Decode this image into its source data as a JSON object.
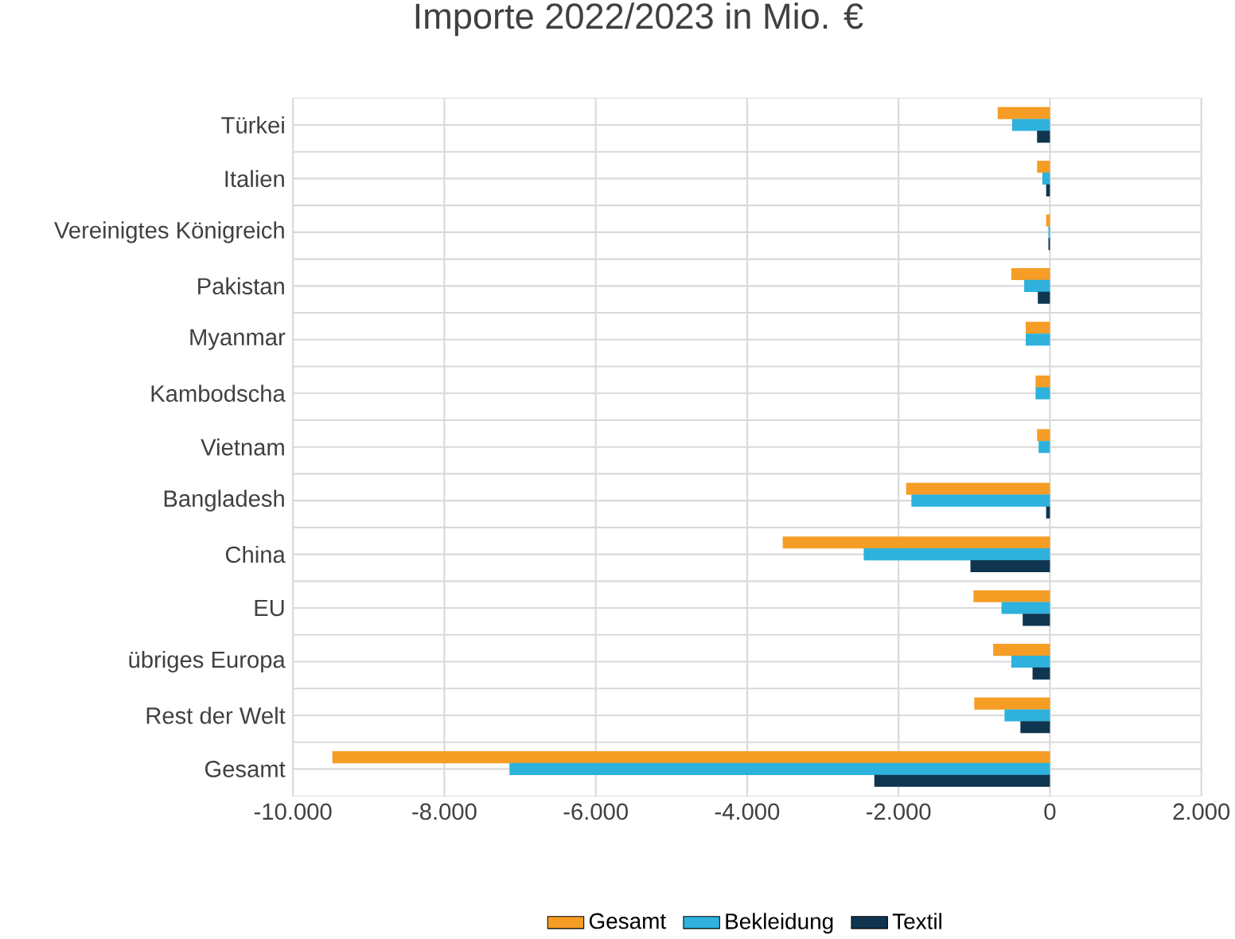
{
  "chart_data": {
    "type": "bar",
    "orientation": "horizontal",
    "title": "Importe 2022/2023 in Mio. €",
    "categories": [
      "Türkei",
      "Italien",
      "Vereinigtes Königreich",
      "Pakistan",
      "Myanmar",
      "Kambodscha",
      "Vietnam",
      "Bangladesh",
      "China",
      "EU",
      "übriges Europa",
      "Rest der Welt",
      "Gesamt"
    ],
    "series": [
      {
        "name": "Gesamt",
        "color": "#f59d25",
        "values": [
          -690,
          -170,
          -50,
          -510,
          -320,
          -190,
          -170,
          -1900,
          -3530,
          -1010,
          -750,
          -1000,
          -9480
        ]
      },
      {
        "name": "Bekleidung",
        "color": "#2eb2dd",
        "values": [
          -500,
          -100,
          -20,
          -340,
          -320,
          -190,
          -150,
          -1830,
          -2460,
          -640,
          -510,
          -600,
          -7140
        ]
      },
      {
        "name": "Textil",
        "color": "#0f3550",
        "values": [
          -170,
          -50,
          -20,
          -160,
          0,
          0,
          0,
          -50,
          -1050,
          -360,
          -230,
          -390,
          -2320
        ]
      }
    ],
    "xlim": [
      -10000,
      2000
    ],
    "xticks": [
      {
        "value": -10000,
        "label": "-10.000"
      },
      {
        "value": -8000,
        "label": "-8.000"
      },
      {
        "value": -6000,
        "label": "-6.000"
      },
      {
        "value": -4000,
        "label": "-4.000"
      },
      {
        "value": -2000,
        "label": "-2.000"
      },
      0,
      {
        "value": 2000,
        "label": "2.000"
      }
    ],
    "grid": true,
    "legend": "bottom"
  }
}
